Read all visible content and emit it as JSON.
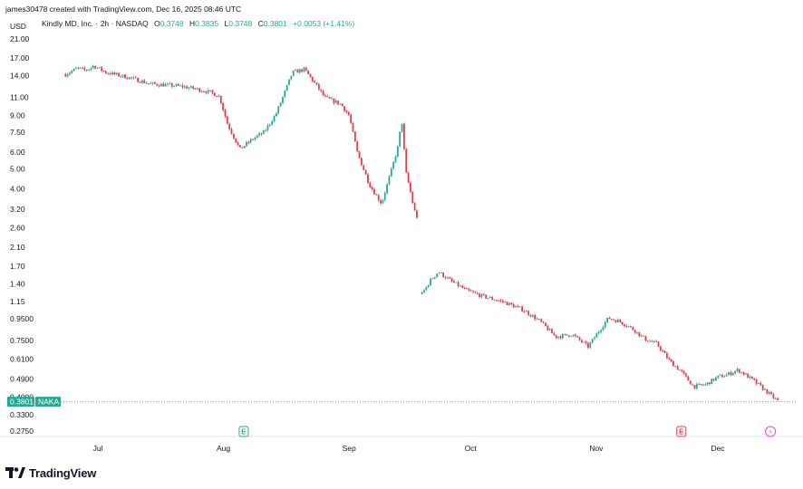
{
  "header": {
    "attribution": "james30478 created with TradingView.com, Dec 16, 2025 08:46 UTC"
  },
  "legend": {
    "symbol": "Kindly MD, Inc. · 2h · NASDAQ",
    "open_label": "O",
    "open": "0.3748",
    "high_label": "H",
    "high": "0.3835",
    "low_label": "L",
    "low": "0.3748",
    "close_label": "C",
    "close": "0.3801",
    "change": "+0.0053 (+1.41%)"
  },
  "axis": {
    "currency": "USD"
  },
  "brand": {
    "name": "TradingView"
  },
  "colors": {
    "up": "#22ab94",
    "down": "#f23645",
    "price_line": "#22ab94",
    "earnings_up": "#22ab94",
    "earnings_down": "#f23645",
    "split_event": "#e040fb"
  },
  "chart_data": {
    "type": "candlestick",
    "symbol": "NAKA",
    "interval": "2h",
    "y_scale": "log",
    "y_ticks": [
      "21.00",
      "17.00",
      "14.00",
      "11.00",
      "9.00",
      "7.50",
      "6.00",
      "5.00",
      "4.00",
      "3.20",
      "2.60",
      "2.10",
      "1.70",
      "1.40",
      "1.15",
      "0.9500",
      "0.7500",
      "0.6100",
      "0.4900",
      "0.4000",
      "0.3300",
      "0.2750"
    ],
    "x_ticks": [
      "Jul",
      "Aug",
      "Sep",
      "Oct",
      "Nov",
      "Dec"
    ],
    "last_price": "0.3801",
    "last_price_label": "NAKA",
    "events": [
      {
        "type": "earnings",
        "label": "E",
        "month": "Aug"
      },
      {
        "type": "earnings",
        "label": "E",
        "month": "Nov"
      },
      {
        "type": "split",
        "label": "⚡",
        "month": "Dec"
      }
    ],
    "segments": [
      {
        "start": "2025-06-23",
        "end": "2025-09-12",
        "points": [
          [
            "2025-06-23",
            14.2
          ],
          [
            "2025-06-26",
            15.2
          ],
          [
            "2025-06-28",
            14.8
          ],
          [
            "2025-06-30",
            15.6
          ],
          [
            "2025-07-03",
            14.5
          ],
          [
            "2025-07-08",
            13.8
          ],
          [
            "2025-07-14",
            12.8
          ],
          [
            "2025-07-18",
            12.6
          ],
          [
            "2025-07-22",
            12.4
          ],
          [
            "2025-07-26",
            12.0
          ],
          [
            "2025-07-29",
            11.6
          ],
          [
            "2025-07-31",
            11.1
          ],
          [
            "2025-08-02",
            8.2
          ],
          [
            "2025-08-05",
            6.2
          ],
          [
            "2025-08-08",
            6.9
          ],
          [
            "2025-08-11",
            7.5
          ],
          [
            "2025-08-14",
            9.2
          ],
          [
            "2025-08-16",
            11.5
          ],
          [
            "2025-08-18",
            14.5
          ],
          [
            "2025-08-21",
            15.0
          ],
          [
            "2025-08-24",
            12.5
          ],
          [
            "2025-08-26",
            11.0
          ],
          [
            "2025-08-30",
            10.2
          ],
          [
            "2025-09-01",
            9.0
          ],
          [
            "2025-09-03",
            6.0
          ],
          [
            "2025-09-06",
            4.2
          ],
          [
            "2025-09-09",
            3.4
          ],
          [
            "2025-09-11",
            4.6
          ],
          [
            "2025-09-13",
            6.3
          ],
          [
            "2025-09-14",
            8.6
          ],
          [
            "2025-09-15",
            4.8
          ],
          [
            "2025-09-16",
            4.0
          ],
          [
            "2025-09-17",
            3.2
          ],
          [
            "2025-09-18",
            2.85
          ]
        ]
      },
      {
        "start": "2025-09-19",
        "end": "2025-12-16",
        "points": [
          [
            "2025-09-19",
            1.25
          ],
          [
            "2025-09-21",
            1.45
          ],
          [
            "2025-09-23",
            1.6
          ],
          [
            "2025-09-26",
            1.45
          ],
          [
            "2025-09-30",
            1.3
          ],
          [
            "2025-10-04",
            1.22
          ],
          [
            "2025-10-09",
            1.15
          ],
          [
            "2025-10-14",
            1.05
          ],
          [
            "2025-10-18",
            0.93
          ],
          [
            "2025-10-22",
            0.78
          ],
          [
            "2025-10-26",
            0.8
          ],
          [
            "2025-10-30",
            0.7
          ],
          [
            "2025-11-02",
            0.85
          ],
          [
            "2025-11-04",
            0.96
          ],
          [
            "2025-11-07",
            0.92
          ],
          [
            "2025-11-10",
            0.85
          ],
          [
            "2025-11-13",
            0.76
          ],
          [
            "2025-11-16",
            0.72
          ],
          [
            "2025-11-19",
            0.6
          ],
          [
            "2025-11-22",
            0.53
          ],
          [
            "2025-11-25",
            0.45
          ],
          [
            "2025-11-28",
            0.46
          ],
          [
            "2025-12-01",
            0.5
          ],
          [
            "2025-12-03",
            0.51
          ],
          [
            "2025-12-06",
            0.54
          ],
          [
            "2025-12-08",
            0.51
          ],
          [
            "2025-12-11",
            0.46
          ],
          [
            "2025-12-14",
            0.41
          ],
          [
            "2025-12-16",
            0.38
          ]
        ]
      }
    ]
  }
}
